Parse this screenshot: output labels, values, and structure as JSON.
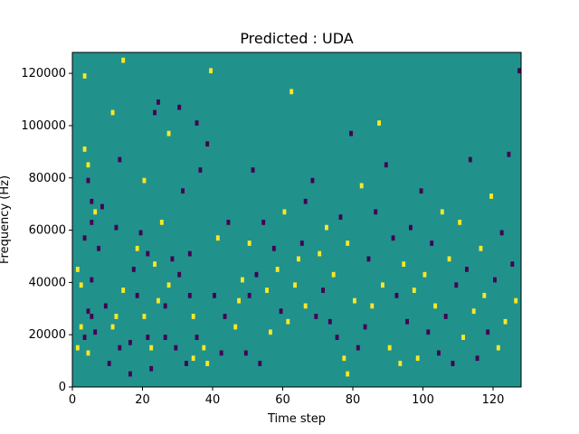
{
  "chart_data": {
    "type": "heatmap",
    "title": "Predicted : UDA",
    "xlabel": "Time step",
    "ylabel": "Frequency (Hz)",
    "xlim": [
      0,
      128
    ],
    "ylim": [
      0,
      128000
    ],
    "xticks": [
      0,
      20,
      40,
      60,
      80,
      100,
      120
    ],
    "yticks": [
      0,
      20000,
      40000,
      60000,
      80000,
      100000,
      120000
    ],
    "grid": false,
    "legend": "none",
    "colormap": "viridis",
    "colors": {
      "background": "#21918c",
      "low": "#440154",
      "high": "#fde725",
      "axis": "#000000"
    },
    "cell_size": [
      1,
      2000
    ],
    "background_value": 0.5,
    "cells": [
      [
        1,
        14000,
        1
      ],
      [
        1,
        44000,
        1
      ],
      [
        2,
        22000,
        1
      ],
      [
        2,
        38000,
        1
      ],
      [
        3,
        18000,
        0
      ],
      [
        3,
        56000,
        0
      ],
      [
        3,
        90000,
        1
      ],
      [
        3,
        118000,
        1
      ],
      [
        4,
        12000,
        1
      ],
      [
        4,
        28000,
        0
      ],
      [
        4,
        84000,
        1
      ],
      [
        4,
        78000,
        0
      ],
      [
        5,
        26000,
        0
      ],
      [
        5,
        40000,
        0
      ],
      [
        5,
        62000,
        0
      ],
      [
        5,
        70000,
        0
      ],
      [
        6,
        66000,
        1
      ],
      [
        6,
        20000,
        0
      ],
      [
        7,
        52000,
        0
      ],
      [
        8,
        68000,
        0
      ],
      [
        9,
        30000,
        0
      ],
      [
        10,
        8000,
        0
      ],
      [
        11,
        22000,
        1
      ],
      [
        11,
        104000,
        1
      ],
      [
        12,
        26000,
        1
      ],
      [
        12,
        60000,
        0
      ],
      [
        13,
        14000,
        0
      ],
      [
        13,
        86000,
        0
      ],
      [
        14,
        36000,
        1
      ],
      [
        14,
        124000,
        1
      ],
      [
        16,
        4000,
        0
      ],
      [
        16,
        16000,
        0
      ],
      [
        17,
        44000,
        0
      ],
      [
        18,
        34000,
        0
      ],
      [
        18,
        52000,
        1
      ],
      [
        19,
        58000,
        0
      ],
      [
        20,
        26000,
        1
      ],
      [
        20,
        78000,
        1
      ],
      [
        21,
        18000,
        0
      ],
      [
        21,
        50000,
        0
      ],
      [
        22,
        14000,
        1
      ],
      [
        22,
        6000,
        0
      ],
      [
        23,
        46000,
        1
      ],
      [
        23,
        104000,
        0
      ],
      [
        24,
        32000,
        1
      ],
      [
        24,
        108000,
        0
      ],
      [
        25,
        62000,
        1
      ],
      [
        26,
        18000,
        0
      ],
      [
        26,
        30000,
        0
      ],
      [
        27,
        38000,
        1
      ],
      [
        27,
        96000,
        1
      ],
      [
        28,
        48000,
        0
      ],
      [
        29,
        14000,
        0
      ],
      [
        30,
        42000,
        0
      ],
      [
        30,
        106000,
        0
      ],
      [
        31,
        74000,
        0
      ],
      [
        32,
        8000,
        0
      ],
      [
        33,
        34000,
        0
      ],
      [
        33,
        50000,
        0
      ],
      [
        34,
        10000,
        1
      ],
      [
        34,
        26000,
        1
      ],
      [
        35,
        18000,
        0
      ],
      [
        35,
        100000,
        0
      ],
      [
        36,
        82000,
        0
      ],
      [
        37,
        14000,
        1
      ],
      [
        38,
        8000,
        1
      ],
      [
        38,
        92000,
        0
      ],
      [
        39,
        120000,
        1
      ],
      [
        40,
        34000,
        0
      ],
      [
        41,
        56000,
        1
      ],
      [
        42,
        12000,
        0
      ],
      [
        43,
        26000,
        0
      ],
      [
        44,
        62000,
        0
      ],
      [
        46,
        22000,
        1
      ],
      [
        47,
        32000,
        1
      ],
      [
        48,
        40000,
        1
      ],
      [
        49,
        12000,
        0
      ],
      [
        50,
        34000,
        0
      ],
      [
        50,
        54000,
        1
      ],
      [
        51,
        82000,
        0
      ],
      [
        52,
        42000,
        0
      ],
      [
        53,
        8000,
        0
      ],
      [
        54,
        62000,
        0
      ],
      [
        55,
        36000,
        1
      ],
      [
        56,
        20000,
        1
      ],
      [
        57,
        52000,
        0
      ],
      [
        58,
        44000,
        1
      ],
      [
        59,
        28000,
        0
      ],
      [
        60,
        66000,
        1
      ],
      [
        61,
        24000,
        1
      ],
      [
        62,
        112000,
        1
      ],
      [
        63,
        38000,
        1
      ],
      [
        64,
        48000,
        1
      ],
      [
        65,
        54000,
        0
      ],
      [
        66,
        30000,
        1
      ],
      [
        66,
        70000,
        0
      ],
      [
        68,
        78000,
        0
      ],
      [
        69,
        26000,
        0
      ],
      [
        70,
        50000,
        1
      ],
      [
        71,
        36000,
        0
      ],
      [
        72,
        60000,
        1
      ],
      [
        73,
        24000,
        0
      ],
      [
        74,
        42000,
        1
      ],
      [
        75,
        18000,
        0
      ],
      [
        76,
        64000,
        0
      ],
      [
        77,
        10000,
        1
      ],
      [
        78,
        4000,
        1
      ],
      [
        78,
        54000,
        1
      ],
      [
        79,
        96000,
        0
      ],
      [
        80,
        32000,
        1
      ],
      [
        81,
        14000,
        0
      ],
      [
        82,
        76000,
        1
      ],
      [
        83,
        22000,
        0
      ],
      [
        84,
        48000,
        0
      ],
      [
        85,
        30000,
        1
      ],
      [
        86,
        66000,
        0
      ],
      [
        87,
        100000,
        1
      ],
      [
        88,
        38000,
        1
      ],
      [
        89,
        84000,
        0
      ],
      [
        90,
        14000,
        1
      ],
      [
        91,
        56000,
        0
      ],
      [
        92,
        34000,
        0
      ],
      [
        93,
        8000,
        1
      ],
      [
        94,
        46000,
        1
      ],
      [
        95,
        24000,
        0
      ],
      [
        96,
        60000,
        0
      ],
      [
        97,
        36000,
        1
      ],
      [
        98,
        10000,
        1
      ],
      [
        99,
        74000,
        0
      ],
      [
        100,
        42000,
        1
      ],
      [
        101,
        20000,
        0
      ],
      [
        102,
        54000,
        0
      ],
      [
        103,
        30000,
        1
      ],
      [
        104,
        12000,
        0
      ],
      [
        105,
        66000,
        1
      ],
      [
        106,
        26000,
        0
      ],
      [
        107,
        48000,
        1
      ],
      [
        108,
        8000,
        0
      ],
      [
        109,
        38000,
        0
      ],
      [
        110,
        62000,
        1
      ],
      [
        111,
        18000,
        1
      ],
      [
        112,
        44000,
        0
      ],
      [
        113,
        86000,
        0
      ],
      [
        114,
        28000,
        1
      ],
      [
        115,
        10000,
        0
      ],
      [
        116,
        52000,
        1
      ],
      [
        117,
        34000,
        1
      ],
      [
        118,
        20000,
        0
      ],
      [
        119,
        72000,
        1
      ],
      [
        120,
        40000,
        0
      ],
      [
        121,
        14000,
        1
      ],
      [
        122,
        58000,
        0
      ],
      [
        123,
        24000,
        1
      ],
      [
        124,
        88000,
        0
      ],
      [
        125,
        46000,
        0
      ],
      [
        126,
        32000,
        1
      ],
      [
        127,
        120000,
        0
      ]
    ]
  }
}
